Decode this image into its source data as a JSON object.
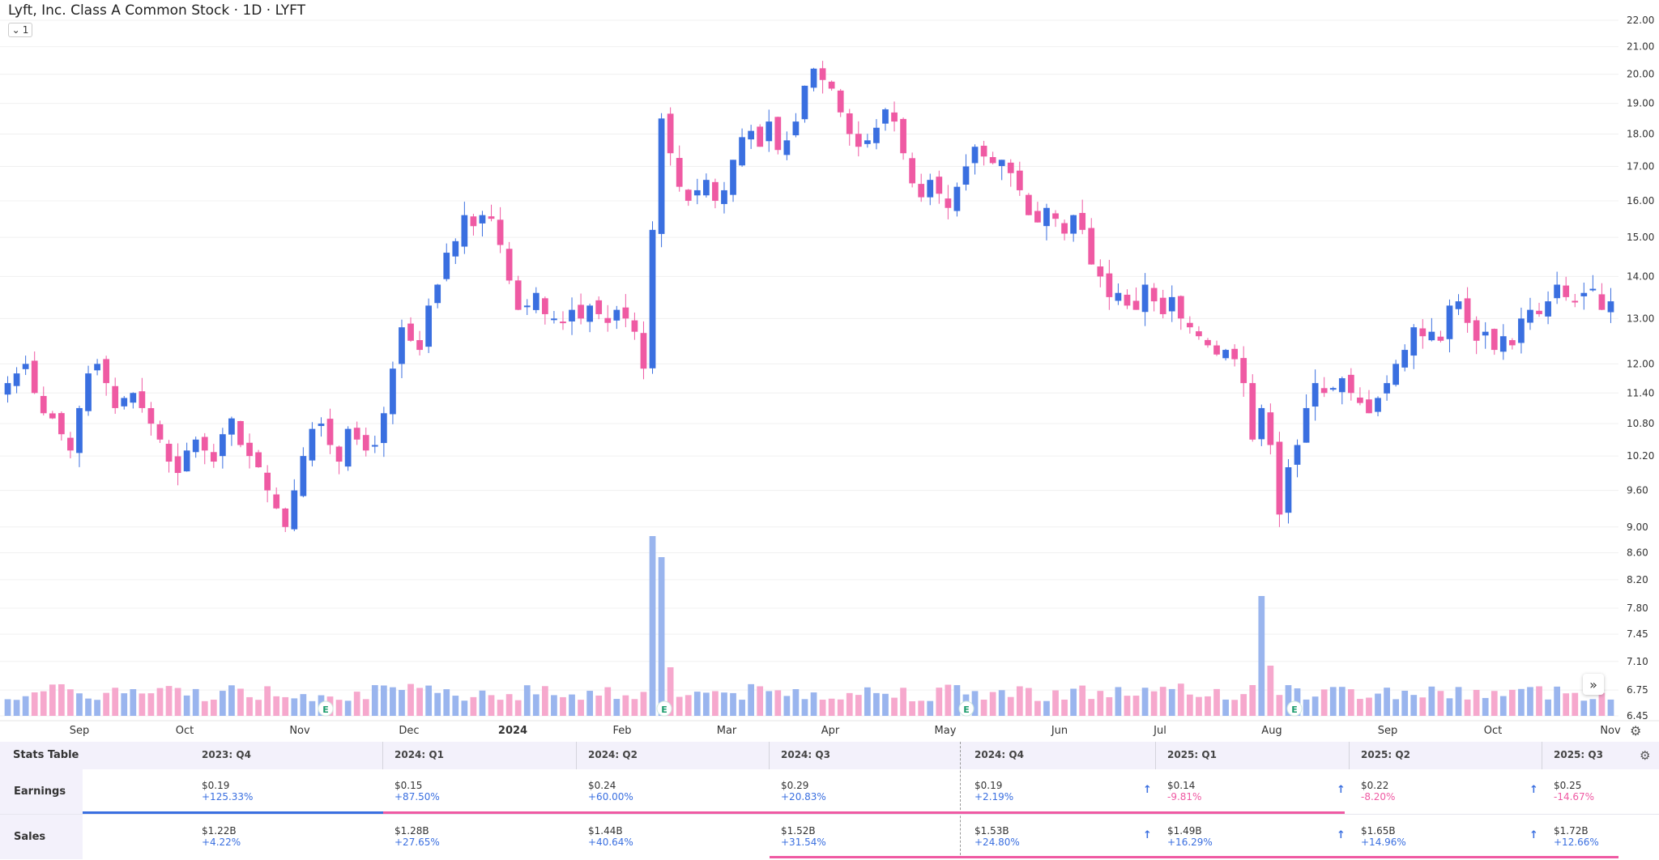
{
  "header": {
    "title": "Lyft, Inc. Class A Common Stock · 1D · LYFT",
    "collapse_label": "1"
  },
  "colors": {
    "up": "#3a6fe0",
    "down": "#ef5aa3",
    "vol_up": "#9ab5ee",
    "vol_down": "#f6a8cd",
    "grid": "#f0f0f0"
  },
  "chart_data": {
    "type": "candlestick",
    "title": "Lyft, Inc. Class A Common Stock · 1D · LYFT",
    "y_axis": {
      "scale": "log",
      "range": [
        6.45,
        22.0
      ],
      "ticks": [
        "22.00",
        "21.00",
        "20.00",
        "19.00",
        "18.00",
        "17.00",
        "16.00",
        "15.00",
        "14.00",
        "13.00",
        "12.00",
        "11.40",
        "10.80",
        "10.20",
        "9.60",
        "9.00",
        "8.60",
        "8.20",
        "7.80",
        "7.45",
        "7.10",
        "6.75",
        "6.45"
      ]
    },
    "x_axis": {
      "labels": [
        "Sep",
        "Oct",
        "Nov",
        "Dec",
        "2024",
        "Feb",
        "Mar",
        "Apr",
        "May",
        "Jun",
        "Jul",
        "Aug",
        "Sep",
        "Oct",
        "Nov"
      ]
    },
    "closes": [
      11.6,
      11.8,
      12.0,
      11.4,
      11.0,
      10.9,
      10.6,
      10.3,
      11.1,
      11.8,
      12.0,
      11.6,
      11.1,
      11.3,
      11.4,
      11.1,
      10.8,
      10.5,
      10.1,
      9.9,
      10.3,
      10.5,
      10.3,
      10.1,
      10.6,
      10.9,
      10.4,
      10.2,
      10.0,
      9.6,
      9.3,
      9.0,
      9.6,
      10.2,
      10.7,
      10.8,
      10.4,
      10.1,
      10.7,
      10.5,
      10.3,
      10.4,
      11.0,
      11.9,
      12.8,
      12.5,
      12.3,
      13.3,
      13.8,
      14.6,
      14.9,
      15.6,
      15.3,
      15.6,
      15.5,
      14.8,
      13.9,
      13.2,
      13.3,
      13.6,
      13.1,
      13.0,
      12.9,
      13.2,
      13.0,
      13.3,
      13.1,
      12.9,
      13.2,
      13.0,
      12.7,
      11.9,
      15.2,
      18.5,
      17.4,
      16.4,
      16.0,
      16.3,
      16.6,
      16.0,
      16.3,
      17.2,
      17.9,
      18.1,
      17.6,
      18.4,
      17.5,
      17.8,
      18.4,
      19.6,
      20.2,
      19.8,
      19.5,
      18.7,
      18.0,
      17.6,
      17.8,
      18.2,
      18.8,
      18.4,
      17.4,
      16.5,
      16.1,
      16.6,
      16.2,
      15.8,
      16.4,
      17.0,
      17.6,
      17.3,
      17.1,
      17.2,
      16.8,
      16.3,
      15.6,
      15.4,
      15.8,
      15.5,
      15.1,
      15.6,
      15.2,
      14.3,
      14.0,
      13.5,
      13.6,
      13.3,
      13.2,
      13.8,
      13.4,
      13.1,
      13.5,
      13.0,
      12.8,
      12.6,
      12.4,
      12.2,
      12.3,
      12.1,
      11.6,
      10.5,
      11.1,
      10.4,
      9.2,
      10.0,
      10.4,
      11.1,
      11.6,
      11.4,
      11.5,
      11.7,
      11.4,
      11.2,
      11.0,
      11.3,
      11.6,
      12.0,
      12.3,
      12.8,
      12.6,
      12.7,
      12.5,
      13.3,
      13.4,
      12.9,
      12.5,
      12.7,
      12.3,
      12.6,
      12.4,
      13.0,
      13.2,
      13.1,
      13.4,
      13.8,
      13.5,
      13.4,
      13.6,
      13.7,
      13.2,
      13.4
    ],
    "earnings_markers": [
      "Nov",
      "Feb",
      "May",
      "Aug"
    ]
  },
  "stats_table": {
    "title": "Stats Table",
    "quarters": [
      "2023: Q4",
      "2024: Q1",
      "2024: Q2",
      "2024: Q3",
      "2024: Q4",
      "2025: Q1",
      "2025: Q2",
      "2025: Q3"
    ],
    "rows": [
      {
        "label": "Earnings",
        "values": [
          "$0.19",
          "$0.15",
          "$0.24",
          "$0.29",
          "$0.19",
          "$0.14",
          "$0.22",
          "$0.25"
        ],
        "pcts": [
          "+125.33%",
          "+87.50%",
          "+60.00%",
          "+20.83%",
          "+2.19%",
          "-9.81%",
          "-8.20%",
          "-14.67%"
        ]
      },
      {
        "label": "Sales",
        "values": [
          "$1.22B",
          "$1.28B",
          "$1.44B",
          "$1.52B",
          "$1.53B",
          "$1.49B",
          "$1.65B",
          "$1.72B"
        ],
        "pcts": [
          "+4.22%",
          "+27.65%",
          "+40.64%",
          "+31.54%",
          "+24.80%",
          "+16.29%",
          "+14.96%",
          "+12.66%"
        ]
      }
    ]
  }
}
